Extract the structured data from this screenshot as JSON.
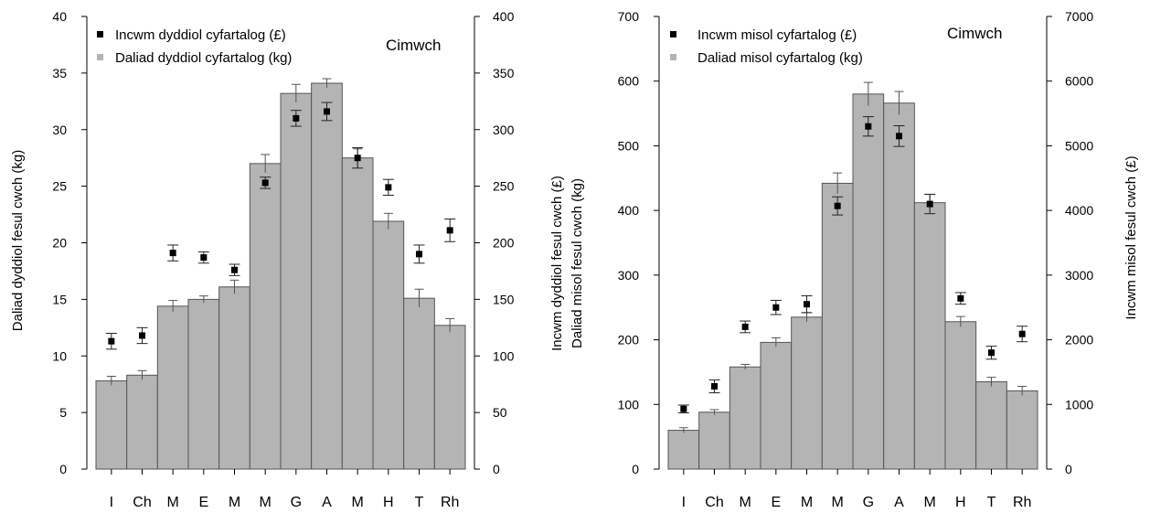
{
  "chart_data": [
    {
      "type": "bar",
      "annotation": "Cimwch",
      "categories": [
        "I",
        "Ch",
        "M",
        "E",
        "M",
        "M",
        "G",
        "A",
        "M",
        "H",
        "T",
        "Rh"
      ],
      "ylabel_left": "Daliad dyddiol fesul cwch (kg)",
      "ylabel_right": "",
      "ylim_left": [
        0,
        40
      ],
      "yticks_left": [
        0,
        5,
        10,
        15,
        20,
        25,
        30,
        35,
        40
      ],
      "ylim_right": [
        0,
        400
      ],
      "yticks_right": [
        0,
        50,
        100,
        150,
        200,
        250,
        300,
        350,
        400
      ],
      "legend": {
        "position": "top-left",
        "items": [
          {
            "label": "Incwm dyddiol cyfartalog (£)",
            "color": "#000000",
            "marker": "square"
          },
          {
            "label": "Daliad dyddiol cyfartalog (kg)",
            "color": "#b4b4b4",
            "marker": "square"
          }
        ]
      },
      "series": [
        {
          "name": "Daliad dyddiol cyfartalog (kg)",
          "kind": "bar",
          "axis": "left",
          "color": "#b4b4b4",
          "values": [
            7.8,
            8.3,
            14.4,
            15.0,
            16.1,
            27.0,
            33.2,
            34.1,
            27.5,
            21.9,
            15.1,
            12.7
          ],
          "err": [
            0.4,
            0.4,
            0.5,
            0.3,
            0.6,
            0.8,
            0.8,
            0.4,
            0.8,
            0.7,
            0.8,
            0.6
          ]
        },
        {
          "name": "Incwm dyddiol cyfartalog (£)",
          "kind": "point",
          "axis": "right",
          "color": "#000000",
          "values": [
            113,
            118,
            191,
            187,
            176,
            253,
            310,
            316,
            275,
            249,
            190,
            211
          ],
          "err": [
            7,
            7,
            7,
            5,
            5,
            5,
            7,
            8,
            9,
            7,
            8,
            10
          ]
        }
      ]
    },
    {
      "type": "bar",
      "annotation": "Cimwch",
      "categories": [
        "I",
        "Ch",
        "M",
        "E",
        "M",
        "M",
        "G",
        "A",
        "M",
        "H",
        "T",
        "Rh"
      ],
      "ylabel_left_lines": [
        "Incwm dyddiol fesul cwch (£)",
        "Daliad misol fesul cwch (kg)"
      ],
      "ylabel_right": "Incwm misol fesul cwch (£)",
      "ylim_left": [
        0,
        700
      ],
      "yticks_left": [
        0,
        100,
        200,
        300,
        400,
        500,
        600,
        700
      ],
      "ylim_right": [
        0,
        7000
      ],
      "yticks_right": [
        0,
        1000,
        2000,
        3000,
        4000,
        5000,
        6000,
        7000
      ],
      "legend": {
        "position": "top-left",
        "items": [
          {
            "label": "Incwm misol cyfartalog (£)",
            "color": "#000000",
            "marker": "square"
          },
          {
            "label": "Daliad misol cyfartalog (kg)",
            "color": "#b4b4b4",
            "marker": "square"
          }
        ]
      },
      "series": [
        {
          "name": "Daliad misol cyfartalog (kg)",
          "kind": "bar",
          "axis": "left",
          "color": "#b4b4b4",
          "values": [
            60,
            88,
            158,
            196,
            235,
            442,
            580,
            566,
            412,
            228,
            135,
            121
          ],
          "err": [
            4,
            4,
            4,
            7,
            7,
            16,
            18,
            18,
            13,
            8,
            7,
            7
          ]
        },
        {
          "name": "Incwm misol cyfartalog (£)",
          "kind": "point",
          "axis": "right",
          "color": "#000000",
          "values": [
            930,
            1280,
            2200,
            2500,
            2550,
            4070,
            5300,
            5150,
            4100,
            2640,
            1800,
            2090
          ],
          "err": [
            60,
            100,
            90,
            110,
            130,
            140,
            150,
            160,
            150,
            90,
            100,
            120
          ]
        }
      ]
    }
  ]
}
